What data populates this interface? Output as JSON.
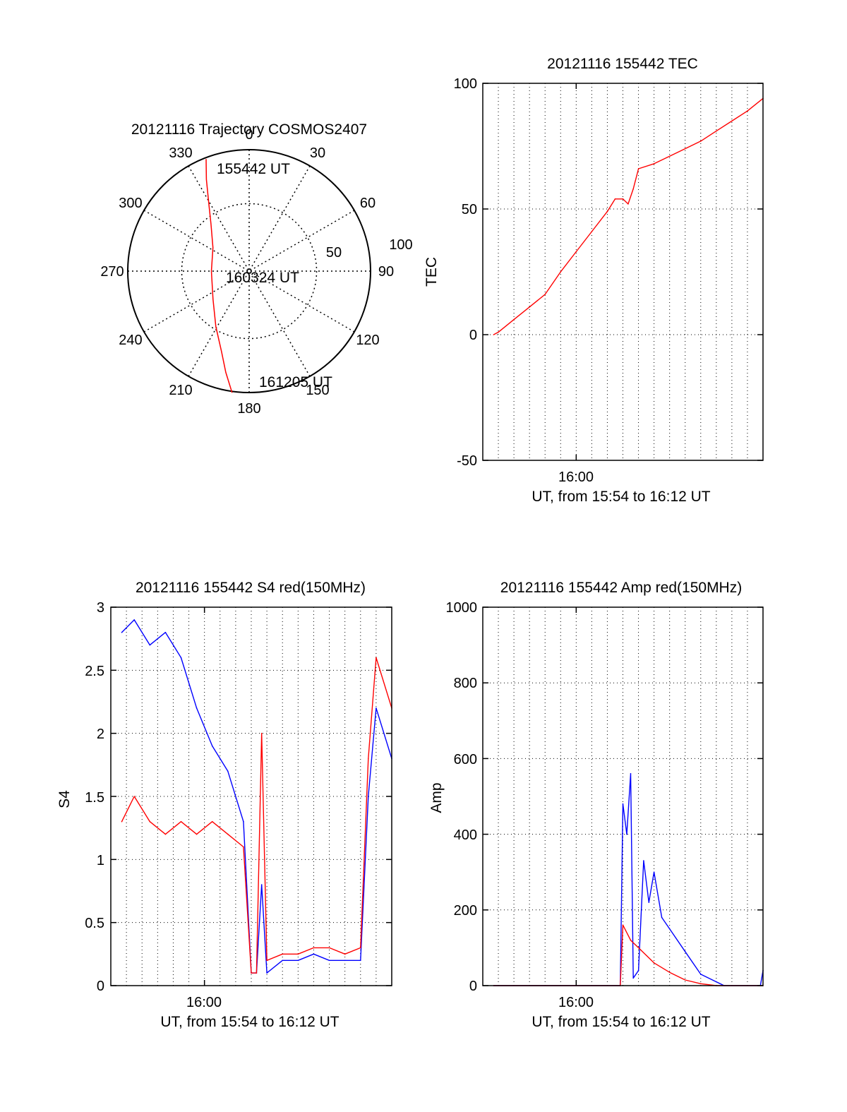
{
  "colors": {
    "red": "#ff0000",
    "blue": "#0000ff",
    "axis": "#000000",
    "grid": "#000000"
  },
  "chart_data": [
    {
      "id": "trajectory",
      "type": "scatter",
      "subtype": "polar",
      "title": "20121116 Trajectory COSMOS2407",
      "azimuth_labels": [
        "0",
        "30",
        "60",
        "90",
        "120",
        "150",
        "180",
        "210",
        "240",
        "270",
        "300",
        "330"
      ],
      "radial_labels": [
        "50",
        "100"
      ],
      "annotations": [
        "155442 UT",
        "160324 UT",
        "161205 UT"
      ],
      "series": [
        {
          "color": "red",
          "points": [
            {
              "az": 339,
              "zen": 89
            },
            {
              "az": 335,
              "zen": 75
            },
            {
              "az": 329,
              "zen": 58
            },
            {
              "az": 321,
              "zen": 45
            },
            {
              "az": 303,
              "zen": 32
            },
            {
              "az": 270,
              "zen": 28
            },
            {
              "az": 232,
              "zen": 34
            },
            {
              "az": 211,
              "zen": 48
            },
            {
              "az": 199,
              "zen": 63
            },
            {
              "az": 193,
              "zen": 77
            },
            {
              "az": 188,
              "zen": 91
            }
          ]
        }
      ]
    },
    {
      "id": "tec",
      "type": "line",
      "title": "20121116 155442 TEC",
      "xlabel": "UT, from 15:54 to 16:12 UT",
      "ylabel": "TEC",
      "x_tick_label": "16:00",
      "xlim": [
        "15:54",
        "16:12"
      ],
      "ylim": [
        -50,
        100
      ],
      "yticks": [
        "-50",
        "0",
        "50",
        "100"
      ],
      "grid": true,
      "series": [
        {
          "color": "red",
          "x": [
            "15:54:42",
            "15:55:00",
            "15:56:00",
            "15:57:00",
            "15:58:00",
            "15:59:00",
            "16:00:00",
            "16:01:00",
            "16:02:00",
            "16:02:30",
            "16:03:00",
            "16:03:20",
            "16:03:40",
            "16:04:00",
            "16:05:00",
            "16:06:00",
            "16:07:00",
            "16:08:00",
            "16:09:00",
            "16:10:00",
            "16:11:00",
            "16:12:00"
          ],
          "y": [
            0,
            1,
            6,
            11,
            16,
            25,
            33,
            41,
            49,
            54,
            54,
            52,
            58,
            66,
            68,
            71,
            74,
            77,
            81,
            85,
            89,
            94
          ]
        }
      ]
    },
    {
      "id": "s4",
      "type": "line",
      "title": "20121116 155442 S4 red(150MHz)",
      "xlabel": "UT, from 15:54 to 16:12 UT",
      "ylabel": "S4",
      "x_tick_label": "16:00",
      "xlim": [
        "15:54",
        "16:12"
      ],
      "ylim": [
        0,
        3
      ],
      "yticks": [
        "0",
        "0.5",
        "1",
        "1.5",
        "2",
        "2.5",
        "3"
      ],
      "grid": true,
      "series": [
        {
          "color": "blue",
          "x": [
            "15:54:42",
            "15:55:30",
            "15:56:30",
            "15:57:30",
            "15:58:30",
            "15:59:30",
            "16:00:30",
            "16:01:30",
            "16:02:30",
            "16:03:00",
            "16:03:20",
            "16:03:40",
            "16:04:00",
            "16:05:00",
            "16:06:00",
            "16:07:00",
            "16:08:00",
            "16:09:00",
            "16:10:00",
            "16:10:30",
            "16:11:00",
            "16:12:00"
          ],
          "y": [
            2.8,
            2.9,
            2.7,
            2.8,
            2.6,
            2.2,
            1.9,
            1.7,
            1.3,
            0.1,
            0.1,
            0.8,
            0.1,
            0.2,
            0.2,
            0.25,
            0.2,
            0.2,
            0.2,
            1.5,
            2.2,
            1.8
          ]
        },
        {
          "color": "red",
          "x": [
            "15:54:42",
            "15:55:30",
            "15:56:30",
            "15:57:30",
            "15:58:30",
            "15:59:30",
            "16:00:30",
            "16:01:30",
            "16:02:30",
            "16:03:00",
            "16:03:20",
            "16:03:40",
            "16:04:00",
            "16:05:00",
            "16:06:00",
            "16:07:00",
            "16:08:00",
            "16:09:00",
            "16:10:00",
            "16:10:30",
            "16:11:00",
            "16:12:00"
          ],
          "y": [
            1.3,
            1.5,
            1.3,
            1.2,
            1.3,
            1.2,
            1.3,
            1.2,
            1.1,
            0.1,
            0.1,
            2.0,
            0.2,
            0.25,
            0.25,
            0.3,
            0.3,
            0.25,
            0.3,
            1.8,
            2.6,
            2.2
          ]
        }
      ]
    },
    {
      "id": "amp",
      "type": "line",
      "title": "20121116 155442 Amp red(150MHz)",
      "xlabel": "UT, from 15:54 to 16:12 UT",
      "ylabel": "Amp",
      "x_tick_label": "16:00",
      "xlim": [
        "15:54",
        "16:12"
      ],
      "ylim": [
        0,
        1000
      ],
      "yticks": [
        "0",
        "200",
        "400",
        "600",
        "800",
        "1000"
      ],
      "grid": true,
      "series": [
        {
          "color": "blue",
          "x": [
            "15:54:42",
            "16:02:50",
            "16:03:00",
            "16:03:15",
            "16:03:30",
            "16:03:40",
            "16:04:00",
            "16:04:20",
            "16:04:40",
            "16:05:00",
            "16:05:30",
            "16:06:00",
            "16:07:00",
            "16:08:00",
            "16:09:00",
            "16:09:30",
            "16:11:50",
            "16:12:00"
          ],
          "y": [
            0,
            0,
            480,
            400,
            560,
            20,
            40,
            330,
            220,
            300,
            180,
            150,
            90,
            30,
            10,
            0,
            0,
            40
          ]
        },
        {
          "color": "red",
          "x": [
            "15:54:42",
            "16:02:50",
            "16:03:00",
            "16:03:30",
            "16:04:00",
            "16:05:00",
            "16:06:00",
            "16:07:00",
            "16:08:00",
            "16:09:00",
            "16:12:00"
          ],
          "y": [
            0,
            0,
            160,
            120,
            100,
            60,
            35,
            15,
            5,
            0,
            0
          ]
        }
      ]
    }
  ]
}
